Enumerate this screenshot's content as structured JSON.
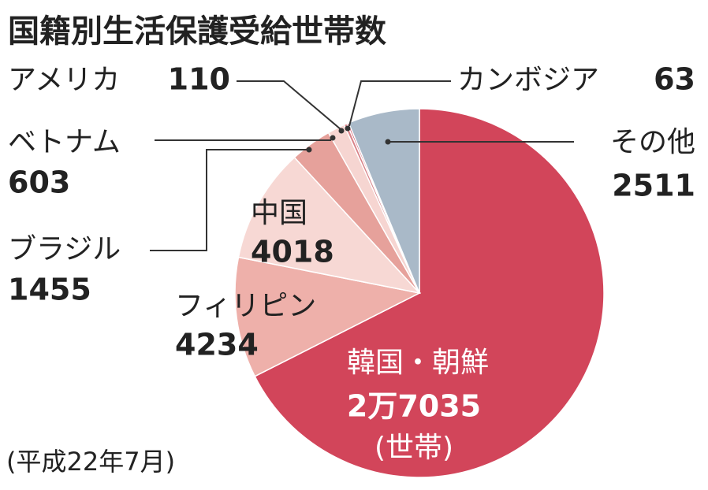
{
  "chart_data": {
    "type": "pie",
    "title": "国籍別生活保護受給世帯数",
    "note": "(平成22年7月)",
    "unit": "(世帯)",
    "categories": [
      "韓国・朝鮮",
      "フィリピン",
      "中国",
      "ブラジル",
      "ベトナム",
      "アメリカ",
      "カンボジア",
      "その他"
    ],
    "values": [
      27035,
      4234,
      4018,
      1455,
      603,
      110,
      63,
      2511
    ],
    "value_labels": [
      "2万7035",
      "4234",
      "4018",
      "1455",
      "603",
      "110",
      "63",
      "2511"
    ],
    "colors": [
      "#d2455a",
      "#eeb0aa",
      "#f7d8d4",
      "#e6a19b",
      "#f6d5d1",
      "#d9848a",
      "#c63a50",
      "#a9b9c8"
    ]
  }
}
